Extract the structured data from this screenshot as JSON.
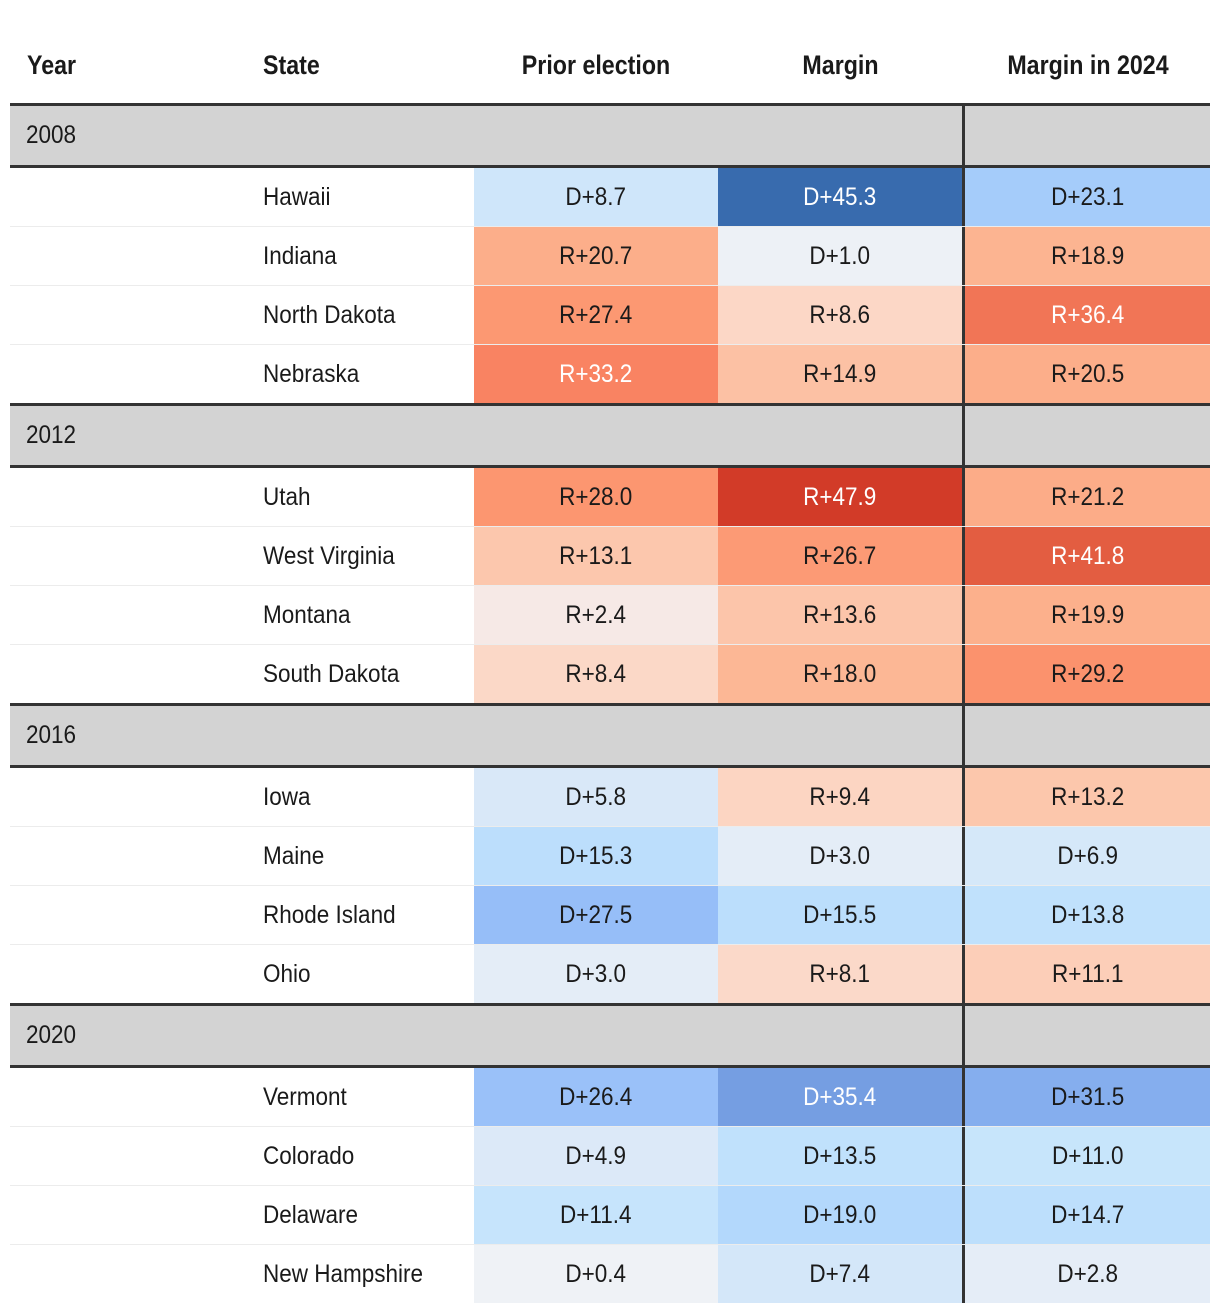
{
  "headers": {
    "year": "Year",
    "state": "State",
    "prior": "Prior election",
    "margin": "Margin",
    "margin2024": "Margin in 2024"
  },
  "colors": {
    "header_rule": "#333333",
    "year_band": "#d3d3d3",
    "d_high": "#3467aa",
    "r_high": "#d23a28"
  },
  "groups": [
    {
      "year": "2008",
      "rows": [
        {
          "state": "Hawaii",
          "prior": "D+8.7",
          "margin": "D+45.3",
          "margin2024": "D+23.1"
        },
        {
          "state": "Indiana",
          "prior": "R+20.7",
          "margin": "D+1.0",
          "margin2024": "R+18.9"
        },
        {
          "state": "North Dakota",
          "prior": "R+27.4",
          "margin": "R+8.6",
          "margin2024": "R+36.4"
        },
        {
          "state": "Nebraska",
          "prior": "R+33.2",
          "margin": "R+14.9",
          "margin2024": "R+20.5"
        }
      ]
    },
    {
      "year": "2012",
      "rows": [
        {
          "state": "Utah",
          "prior": "R+28.0",
          "margin": "R+47.9",
          "margin2024": "R+21.2"
        },
        {
          "state": "West Virginia",
          "prior": "R+13.1",
          "margin": "R+26.7",
          "margin2024": "R+41.8"
        },
        {
          "state": "Montana",
          "prior": "R+2.4",
          "margin": "R+13.6",
          "margin2024": "R+19.9"
        },
        {
          "state": "South Dakota",
          "prior": "R+8.4",
          "margin": "R+18.0",
          "margin2024": "R+29.2"
        }
      ]
    },
    {
      "year": "2016",
      "rows": [
        {
          "state": "Iowa",
          "prior": "D+5.8",
          "margin": "R+9.4",
          "margin2024": "R+13.2"
        },
        {
          "state": "Maine",
          "prior": "D+15.3",
          "margin": "D+3.0",
          "margin2024": "D+6.9"
        },
        {
          "state": "Rhode Island",
          "prior": "D+27.5",
          "margin": "D+15.5",
          "margin2024": "D+13.8"
        },
        {
          "state": "Ohio",
          "prior": "D+3.0",
          "margin": "R+8.1",
          "margin2024": "R+11.1"
        }
      ]
    },
    {
      "year": "2020",
      "rows": [
        {
          "state": "Vermont",
          "prior": "D+26.4",
          "margin": "D+35.4",
          "margin2024": "D+31.5"
        },
        {
          "state": "Colorado",
          "prior": "D+4.9",
          "margin": "D+13.5",
          "margin2024": "D+11.0"
        },
        {
          "state": "Delaware",
          "prior": "D+11.4",
          "margin": "D+19.0",
          "margin2024": "D+14.7"
        },
        {
          "state": "New Hampshire",
          "prior": "D+0.4",
          "margin": "D+7.4",
          "margin2024": "D+2.8"
        }
      ]
    }
  ],
  "chart_data": {
    "type": "table",
    "title": "",
    "columns": [
      "Year",
      "State",
      "Prior election",
      "Margin",
      "Margin in 2024"
    ],
    "note": "Heatmap table; cell colour encodes partisan margin (blue = D, red = R).",
    "rows": [
      [
        "2008",
        "Hawaii",
        "D+8.7",
        "D+45.3",
        "D+23.1"
      ],
      [
        "2008",
        "Indiana",
        "R+20.7",
        "D+1.0",
        "R+18.9"
      ],
      [
        "2008",
        "North Dakota",
        "R+27.4",
        "R+8.6",
        "R+36.4"
      ],
      [
        "2008",
        "Nebraska",
        "R+33.2",
        "R+14.9",
        "R+20.5"
      ],
      [
        "2012",
        "Utah",
        "R+28.0",
        "R+47.9",
        "R+21.2"
      ],
      [
        "2012",
        "West Virginia",
        "R+13.1",
        "R+26.7",
        "R+41.8"
      ],
      [
        "2012",
        "Montana",
        "R+2.4",
        "R+13.6",
        "R+19.9"
      ],
      [
        "2012",
        "South Dakota",
        "R+8.4",
        "R+18.0",
        "R+29.2"
      ],
      [
        "2016",
        "Iowa",
        "D+5.8",
        "R+9.4",
        "R+13.2"
      ],
      [
        "2016",
        "Maine",
        "D+15.3",
        "D+3.0",
        "D+6.9"
      ],
      [
        "2016",
        "Rhode Island",
        "D+27.5",
        "D+15.5",
        "D+13.8"
      ],
      [
        "2016",
        "Ohio",
        "D+3.0",
        "R+8.1",
        "R+11.1"
      ],
      [
        "2020",
        "Vermont",
        "D+26.4",
        "D+35.4",
        "D+31.5"
      ],
      [
        "2020",
        "Colorado",
        "D+4.9",
        "D+13.5",
        "D+11.0"
      ],
      [
        "2020",
        "Delaware",
        "D+11.4",
        "D+19.0",
        "D+14.7"
      ],
      [
        "2020",
        "New Hampshire",
        "D+0.4",
        "D+7.4",
        "D+2.8"
      ]
    ]
  }
}
